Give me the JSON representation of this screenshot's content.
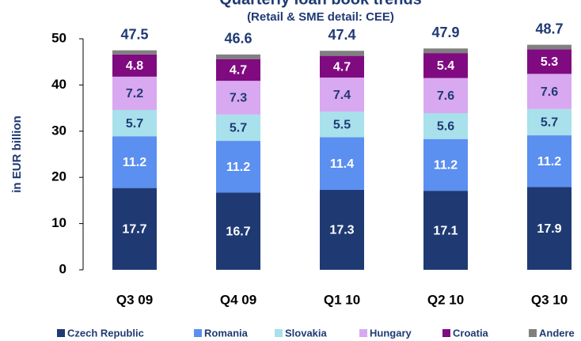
{
  "chart_data": {
    "type": "stacked-bar",
    "title": "Quarterly loan book trends",
    "subtitle": "(Retail & SME detail: CEE)",
    "y_label": "in EUR billion",
    "categories": [
      "Q3 09",
      "Q4 09",
      "Q1 10",
      "Q2 10",
      "Q3 10"
    ],
    "series": [
      {
        "name": "Czech Republic",
        "color": "#1f3a73",
        "label_color": "#ffffff",
        "values": [
          17.7,
          16.7,
          17.3,
          17.1,
          17.9
        ]
      },
      {
        "name": "Romania",
        "color": "#5b8ff0",
        "label_color": "#ffffff",
        "values": [
          11.2,
          11.2,
          11.4,
          11.2,
          11.2
        ]
      },
      {
        "name": "Slovakia",
        "color": "#a8e0ec",
        "label_color": "#1f3a73",
        "values": [
          5.7,
          5.7,
          5.5,
          5.6,
          5.7
        ]
      },
      {
        "name": "Hungary",
        "color": "#d8a8f0",
        "label_color": "#1f3a73",
        "values": [
          7.2,
          7.3,
          7.4,
          7.6,
          7.6
        ]
      },
      {
        "name": "Croatia",
        "color": "#800a80",
        "label_color": "#ffffff",
        "values": [
          4.8,
          4.7,
          4.7,
          5.4,
          5.3
        ]
      },
      {
        "name": "Andere",
        "color": "#808080",
        "values": [
          0.9,
          1.0,
          1.1,
          1.0,
          1.0
        ]
      }
    ],
    "totals": [
      47.5,
      46.6,
      47.4,
      47.9,
      48.7
    ],
    "ylim": [
      0,
      50
    ],
    "yticks": [
      0,
      10,
      20,
      30,
      40,
      50
    ]
  }
}
